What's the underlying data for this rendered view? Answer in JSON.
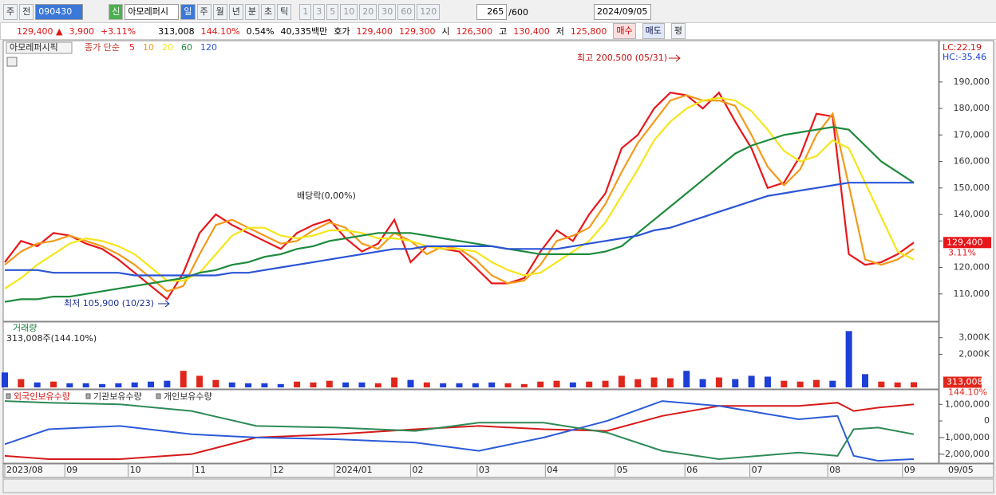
{
  "toolbar": {
    "row1": [
      "주",
      "전",
      "090430",
      "신",
      "아모레퍼시",
      "일",
      "주",
      "월",
      "년",
      "분",
      "초",
      "틱",
      "1",
      "3",
      "5",
      "10",
      "20",
      "30",
      "60",
      "120",
      "265",
      "/600",
      "2024/09/05"
    ],
    "row2": [
      "129,400 ▲",
      "3,900",
      "+3.11%",
      "313,008",
      "144.10%",
      "0.54%",
      "40,335백만",
      "호가",
      "129,400",
      "129,300",
      "시",
      "126,300",
      "고",
      "130,400",
      "저",
      "125,800",
      "매수",
      "매도",
      "평"
    ]
  },
  "chart_data": [
    {
      "type": "line",
      "title": "아모레퍼시픽",
      "subtitle": "종가 단순",
      "x": [
        0,
        1,
        2,
        3,
        4,
        5,
        6,
        7,
        8,
        9,
        10,
        11,
        12,
        13,
        14,
        15,
        16,
        17,
        18,
        19,
        20,
        21,
        22,
        23,
        24,
        25,
        26,
        27,
        28,
        29,
        30,
        31,
        32,
        33,
        34,
        35,
        36,
        37,
        38,
        39,
        40,
        41,
        42,
        43,
        44,
        45,
        46,
        47,
        48,
        49,
        50,
        51,
        52,
        53,
        54,
        55,
        56
      ],
      "xlim": [
        0,
        56
      ],
      "xticks": [
        {
          "value": 0,
          "label": "2023/08"
        },
        {
          "value": 3.7,
          "label": "09"
        },
        {
          "value": 7.6,
          "label": "10"
        },
        {
          "value": 11.6,
          "label": "11"
        },
        {
          "value": 16.4,
          "label": "12"
        },
        {
          "value": 20.3,
          "label": "2024/01"
        },
        {
          "value": 25,
          "label": "02"
        },
        {
          "value": 29.1,
          "label": "03"
        },
        {
          "value": 33.3,
          "label": "04"
        },
        {
          "value": 37.6,
          "label": "05"
        },
        {
          "value": 41.9,
          "label": "06"
        },
        {
          "value": 45.9,
          "label": "07"
        },
        {
          "value": 50.7,
          "label": "08"
        },
        {
          "value": 55.3,
          "label": "09"
        }
      ],
      "x_end_label": "09/05",
      "ylim": [
        100000,
        205300
      ],
      "yticks": [
        {
          "value": 110000,
          "label": "110,000"
        },
        {
          "value": 120000,
          "label": "120,000"
        },
        {
          "value": 130000,
          "label": "130,000"
        },
        {
          "value": 140000,
          "label": "140,000"
        },
        {
          "value": 150000,
          "label": "150,000"
        },
        {
          "value": 160000,
          "label": "160,000"
        },
        {
          "value": 170000,
          "label": "170,000"
        },
        {
          "value": 180000,
          "label": "180,000"
        },
        {
          "value": 190000,
          "label": "190,000"
        }
      ],
      "annotations": [
        "최고 200,500 (05/31)",
        "최저 105,900 (10/23)",
        "배당락(0,00%)",
        "LC:22.19",
        "HC:-35.46"
      ],
      "change_label": "3.11%",
      "series": [
        {
          "name": "5",
          "color": "#e8161a",
          "values": [
            122000,
            130000,
            128000,
            133000,
            132000,
            129000,
            127000,
            123000,
            118000,
            113000,
            108000,
            118000,
            133000,
            140000,
            136000,
            133000,
            130000,
            127000,
            133000,
            136000,
            138000,
            131000,
            126000,
            129000,
            138000,
            122000,
            128000,
            127000,
            126000,
            120000,
            114000,
            114000,
            116000,
            126000,
            134000,
            130000,
            140000,
            148000,
            165000,
            170000,
            180000,
            186000,
            185000,
            180000,
            186000,
            175000,
            165000,
            150000,
            152000,
            162000,
            178000,
            177000,
            125000,
            121000,
            122000,
            125000,
            129400
          ],
          "value_labels": [
            null,
            null,
            null,
            null,
            null,
            null,
            null,
            null,
            null,
            null,
            null,
            null,
            null,
            null,
            null,
            null,
            null,
            null,
            null,
            null,
            null,
            null,
            null,
            null,
            null,
            null,
            null,
            null,
            null,
            null,
            null,
            null,
            null,
            null,
            null,
            null,
            null,
            null,
            null,
            null,
            null,
            null,
            null,
            null,
            null,
            null,
            null,
            null,
            null,
            null,
            null,
            null,
            null,
            null,
            null,
            null,
            "129,400"
          ]
        },
        {
          "name": "10",
          "color": "#f39a1a",
          "values": [
            121000,
            126000,
            129000,
            130000,
            132000,
            130000,
            128000,
            125000,
            121000,
            116000,
            111000,
            113000,
            125000,
            136000,
            138000,
            135000,
            132000,
            129000,
            130000,
            134000,
            137000,
            135000,
            129000,
            127000,
            133000,
            130000,
            125000,
            128000,
            127000,
            123000,
            117000,
            114000,
            115000,
            121000,
            130000,
            132000,
            135000,
            144000,
            156000,
            167000,
            175000,
            183000,
            185000,
            183000,
            183000,
            181000,
            170000,
            158000,
            151000,
            157000,
            170000,
            178000,
            151000,
            123000,
            121000,
            123000,
            127000
          ]
        },
        {
          "name": "20",
          "color": "#f5e61a",
          "values": [
            112000,
            116000,
            121000,
            125000,
            129000,
            131000,
            130000,
            128000,
            125000,
            120000,
            115000,
            115000,
            118000,
            125000,
            132000,
            135000,
            135000,
            132000,
            131000,
            132000,
            134000,
            134000,
            133000,
            131000,
            131000,
            130000,
            128000,
            127000,
            127000,
            126000,
            122000,
            119000,
            117000,
            118000,
            122000,
            126000,
            130000,
            137000,
            147000,
            157000,
            168000,
            175000,
            180000,
            183000,
            184000,
            183000,
            179000,
            172000,
            164000,
            160000,
            162000,
            168000,
            165000,
            152000,
            139000,
            126000,
            123000
          ]
        },
        {
          "name": "60",
          "color": "#1e8a3c",
          "values": [
            107000,
            108000,
            108000,
            109000,
            109000,
            110000,
            111000,
            112000,
            113000,
            114000,
            115000,
            116000,
            118000,
            119000,
            121000,
            122000,
            124000,
            125000,
            127000,
            128000,
            130000,
            131000,
            132000,
            133000,
            133000,
            133000,
            132000,
            131000,
            130000,
            129000,
            128000,
            127000,
            126000,
            125000,
            125000,
            125000,
            125000,
            126000,
            128000,
            133000,
            138000,
            143000,
            148000,
            153000,
            158000,
            163000,
            166000,
            168000,
            170000,
            171000,
            172000,
            173000,
            172000,
            166000,
            160000,
            156000,
            152000
          ]
        },
        {
          "name": "120",
          "color": "#2b54d6",
          "values": [
            119000,
            119000,
            119000,
            118000,
            118000,
            118000,
            118000,
            118000,
            117000,
            117000,
            117000,
            117000,
            117000,
            117000,
            118000,
            118000,
            119000,
            120000,
            121000,
            122000,
            123000,
            124000,
            125000,
            126000,
            127000,
            127000,
            128000,
            128000,
            128000,
            128000,
            128000,
            127000,
            127000,
            127000,
            127000,
            128000,
            129000,
            130000,
            131000,
            132000,
            134000,
            135000,
            137000,
            139000,
            141000,
            143000,
            145000,
            147000,
            148000,
            149000,
            150000,
            151000,
            152000,
            152000,
            152000,
            152000,
            152000
          ]
        }
      ]
    },
    {
      "type": "bar",
      "title": "거래량",
      "subtitle": "313,008주(144.10%)",
      "up_color": "#e0261b",
      "down_color": "#1d3fd6",
      "x": [
        0,
        1,
        2,
        3,
        4,
        5,
        6,
        7,
        8,
        9,
        10,
        11,
        12,
        13,
        14,
        15,
        16,
        17,
        18,
        19,
        20,
        21,
        22,
        23,
        24,
        25,
        26,
        27,
        28,
        29,
        30,
        31,
        32,
        33,
        34,
        35,
        36,
        37,
        38,
        39,
        40,
        41,
        42,
        43,
        44,
        45,
        46,
        47,
        48,
        49,
        50,
        51,
        52,
        53,
        54,
        55,
        56
      ],
      "ylim": [
        0,
        3850000
      ],
      "yticks": [
        {
          "value": 2000000,
          "label": "2,000K"
        },
        {
          "value": 3000000,
          "label": "3,000K"
        }
      ],
      "ratio_label": "144.10%",
      "values": [
        900000,
        500000,
        300000,
        350000,
        250000,
        250000,
        200000,
        250000,
        300000,
        350000,
        400000,
        1000000,
        700000,
        450000,
        300000,
        250000,
        250000,
        200000,
        350000,
        300000,
        400000,
        300000,
        300000,
        250000,
        600000,
        450000,
        300000,
        250000,
        250000,
        250000,
        300000,
        250000,
        200000,
        350000,
        400000,
        300000,
        350000,
        400000,
        700000,
        500000,
        600000,
        550000,
        1000000,
        500000,
        600000,
        500000,
        700000,
        650000,
        400000,
        350000,
        450000,
        400000,
        3400000,
        800000,
        350000,
        300000,
        313008
      ],
      "value_labels": [
        null,
        null,
        null,
        null,
        null,
        null,
        null,
        null,
        null,
        null,
        null,
        null,
        null,
        null,
        null,
        null,
        null,
        null,
        null,
        null,
        null,
        null,
        null,
        null,
        null,
        null,
        null,
        null,
        null,
        null,
        null,
        null,
        null,
        null,
        null,
        null,
        null,
        null,
        null,
        null,
        null,
        null,
        null,
        null,
        null,
        null,
        null,
        null,
        null,
        null,
        null,
        null,
        null,
        null,
        null,
        null,
        "313,008"
      ]
    },
    {
      "type": "line",
      "x": [
        0,
        2.7,
        7.1,
        11.5,
        15.5,
        20.4,
        25.3,
        29.2,
        33.2,
        37.1,
        40.5,
        44,
        48.9,
        51.3,
        52.3,
        53.8,
        56
      ],
      "ylim": [
        -2490000,
        1780000
      ],
      "yticks": [
        {
          "value": 1000000,
          "label": "1,000,000"
        },
        0,
        {
          "value": -1000000,
          "label": "-1,000,000"
        },
        {
          "value": -2000000,
          "label": "-2,000,000"
        }
      ],
      "series": [
        {
          "name": "외국인보유수량",
          "color": "#d61a1a",
          "values": [
            -2100000,
            -2300000,
            -2300000,
            -2000000,
            -1000000,
            -800000,
            -500000,
            -300000,
            -500000,
            -600000,
            300000,
            900000,
            900000,
            1100000,
            600000,
            800000,
            1000000
          ]
        },
        {
          "name": "기관보유수량",
          "color": "#2c5bd8",
          "values": [
            -1400000,
            -500000,
            -300000,
            -800000,
            -1000000,
            -1100000,
            -1300000,
            -1800000,
            -1000000,
            0,
            1200000,
            900000,
            100000,
            300000,
            -2100000,
            -2400000,
            -2300000
          ]
        },
        {
          "name": "개인보유수량",
          "color": "#2e8a57",
          "values": [
            1200000,
            1100000,
            1000000,
            600000,
            -300000,
            -400000,
            -600000,
            -100000,
            -100000,
            -700000,
            -1800000,
            -2300000,
            -1900000,
            -2100000,
            -500000,
            -400000,
            -800000
          ]
        }
      ]
    }
  ]
}
